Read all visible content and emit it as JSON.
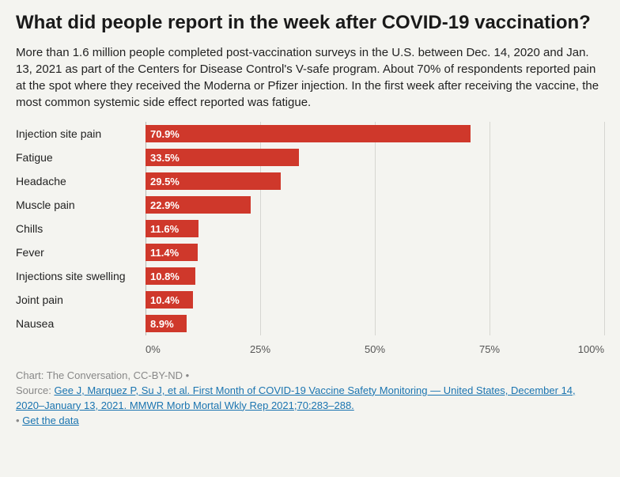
{
  "title": "What did people report in the week after COVID-19 vaccination?",
  "description": "More than 1.6 million people completed post-vaccination surveys in the U.S. between Dec. 14, 2020 and Jan. 13, 2021 as part of the Centers for Disease Control's V-safe program. About 70% of respondents reported pain at the spot where they received the Moderna or Pfizer injection. In the first week after receiving the vaccine, the most common systemic side effect reported was fatigue.",
  "chart": {
    "type": "bar",
    "orientation": "horizontal",
    "xmax": 100,
    "bar_color": "#cf382b",
    "value_text_color": "#ffffff",
    "grid_color_strong": "#b8b8b3",
    "grid_color_weak": "#d6d6d1",
    "axis_color": "#555555",
    "background_color": "#f4f4f0",
    "ticks": [
      {
        "pos": 0,
        "label": "0%"
      },
      {
        "pos": 25,
        "label": "25%"
      },
      {
        "pos": 50,
        "label": "50%"
      },
      {
        "pos": 75,
        "label": "75%"
      },
      {
        "pos": 100,
        "label": "100%"
      }
    ],
    "items": [
      {
        "label": "Injection site pain",
        "value": 70.9,
        "display": "70.9%"
      },
      {
        "label": "Fatigue",
        "value": 33.5,
        "display": "33.5%"
      },
      {
        "label": "Headache",
        "value": 29.5,
        "display": "29.5%"
      },
      {
        "label": "Muscle pain",
        "value": 22.9,
        "display": "22.9%"
      },
      {
        "label": "Chills",
        "value": 11.6,
        "display": "11.6%"
      },
      {
        "label": "Fever",
        "value": 11.4,
        "display": "11.4%"
      },
      {
        "label": "Injections site swelling",
        "value": 10.8,
        "display": "10.8%"
      },
      {
        "label": "Joint pain",
        "value": 10.4,
        "display": "10.4%"
      },
      {
        "label": "Nausea",
        "value": 8.9,
        "display": "8.9%"
      }
    ]
  },
  "footer": {
    "chart_credit": "Chart: The Conversation, CC-BY-ND",
    "source_label": "Source:",
    "source_link_text": "Gee J, Marquez P, Su J, et al. First Month of COVID-19 Vaccine Safety Monitoring — United States, December 14, 2020–January 13, 2021. MMWR Morb Mortal Wkly Rep 2021;70:283–288.",
    "get_data_label": "Get the data",
    "bullet": "•",
    "link_color": "#1a74b0"
  }
}
